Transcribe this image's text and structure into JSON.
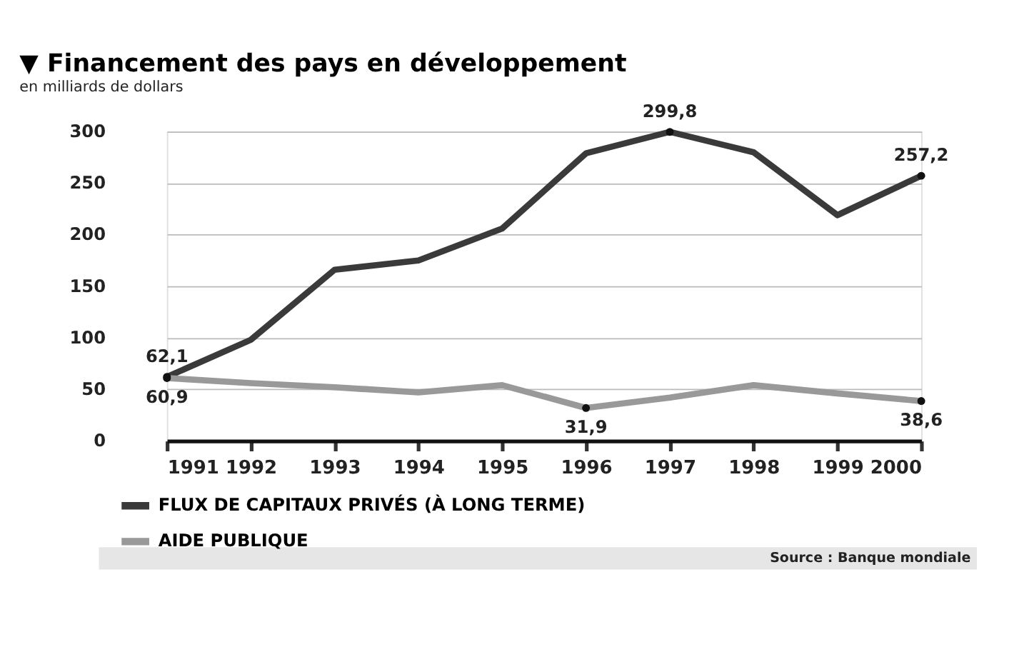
{
  "chart_data": {
    "type": "line",
    "title": "▼ Financement des pays en développement",
    "subtitle": "en milliards de dollars",
    "categories": [
      "1991",
      "1992",
      "1993",
      "1994",
      "1995",
      "1996",
      "1997",
      "1998",
      "1999",
      "2000"
    ],
    "series": [
      {
        "name": "FLUX DE CAPITAUX PRIVÉS (À LONG TERME)",
        "color": "#3a3a3a",
        "values": [
          62.1,
          98,
          166,
          175,
          206,
          279,
          299.8,
          280,
          219,
          257.2
        ],
        "value_labels": [
          "62,1",
          null,
          null,
          null,
          null,
          null,
          "299,8",
          null,
          null,
          "257,2"
        ]
      },
      {
        "name": "AIDE PUBLIQUE",
        "color": "#999999",
        "values": [
          60.9,
          56,
          52,
          47,
          54,
          31.9,
          42,
          54,
          46,
          38.6
        ],
        "value_labels": [
          "60,9",
          null,
          null,
          null,
          null,
          "31,9",
          null,
          null,
          null,
          "38,6"
        ]
      }
    ],
    "ylim": [
      0,
      300
    ],
    "yticks": [
      0,
      50,
      100,
      150,
      200,
      250,
      300
    ],
    "grid": "y",
    "legend": "bottom left",
    "annotations": [
      "Source : Banque mondiale"
    ]
  }
}
